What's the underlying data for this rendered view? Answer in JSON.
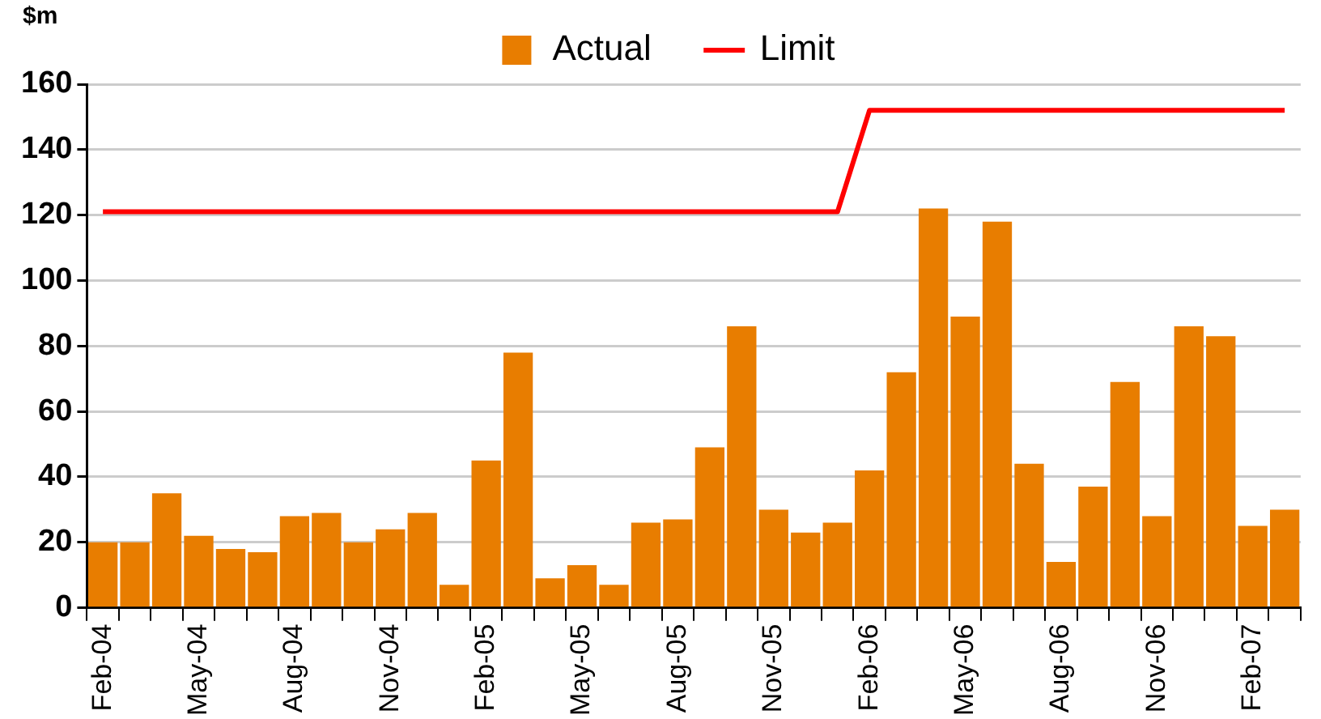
{
  "chart_data": {
    "type": "bar",
    "ylabel": "$m",
    "legend": "top",
    "grid": "y",
    "categories": [
      "Feb-04",
      null,
      null,
      "May-04",
      null,
      null,
      "Aug-04",
      null,
      null,
      "Nov-04",
      null,
      null,
      "Feb-05",
      null,
      null,
      "May-05",
      null,
      null,
      "Aug-05",
      null,
      null,
      "Nov-05",
      null,
      null,
      "Feb-06",
      null,
      null,
      "May-06",
      null,
      null,
      "Aug-06",
      null,
      null,
      "Nov-06",
      null,
      null,
      "Feb-07",
      null
    ],
    "ylim": [
      0,
      160
    ],
    "yticks": [
      0,
      20,
      40,
      60,
      80,
      100,
      120,
      140,
      160
    ],
    "series": [
      {
        "name": "Actual",
        "color": "#e87d00",
        "values": [
          20,
          20,
          35,
          22,
          18,
          17,
          28,
          29,
          20,
          24,
          29,
          7,
          45,
          78,
          9,
          13,
          7,
          26,
          27,
          49,
          86,
          30,
          23,
          26,
          42,
          72,
          122,
          89,
          118,
          44,
          14,
          37,
          69,
          28,
          86,
          83,
          25,
          30
        ]
      },
      {
        "name": "Limit",
        "type": "line",
        "color": "#ff0000",
        "values": [
          121,
          121,
          121,
          121,
          121,
          121,
          121,
          121,
          121,
          121,
          121,
          121,
          121,
          121,
          121,
          121,
          121,
          121,
          121,
          121,
          121,
          121,
          121,
          121,
          152,
          152,
          152,
          152,
          152,
          152,
          152,
          152,
          152,
          152,
          152,
          152,
          152,
          152
        ]
      }
    ]
  }
}
